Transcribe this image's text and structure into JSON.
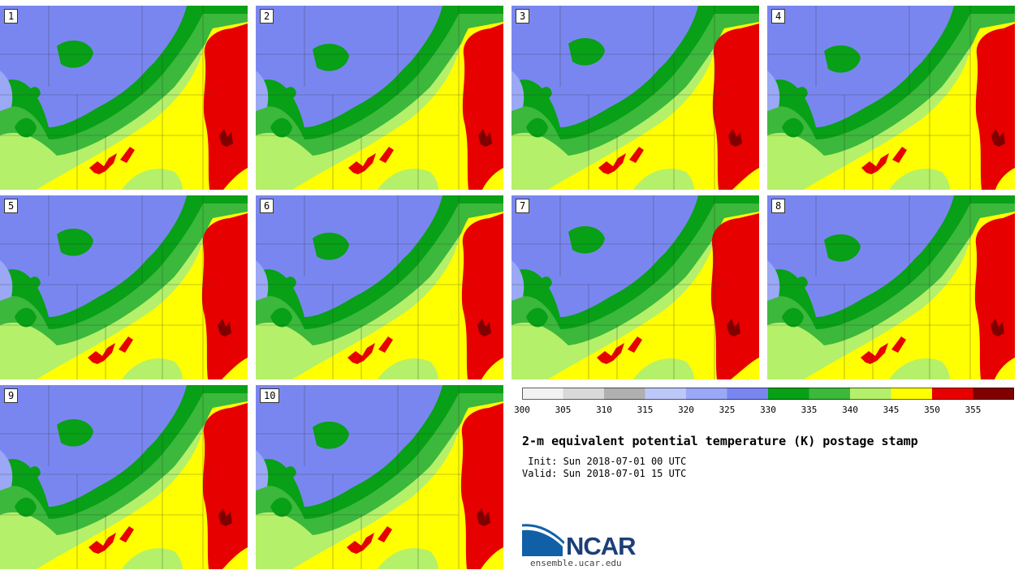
{
  "panels": [
    {
      "label": "1",
      "shift": 0
    },
    {
      "label": "2",
      "shift": 4
    },
    {
      "label": "3",
      "shift": -3
    },
    {
      "label": "4",
      "shift": 6
    },
    {
      "label": "5",
      "shift": -2
    },
    {
      "label": "6",
      "shift": 3
    },
    {
      "label": "7",
      "shift": -5
    },
    {
      "label": "8",
      "shift": 5
    },
    {
      "label": "9",
      "shift": -1
    },
    {
      "label": "10",
      "shift": 2
    }
  ],
  "colorbar": {
    "levels": [
      "300",
      "305",
      "310",
      "315",
      "320",
      "325",
      "330",
      "335",
      "340",
      "345",
      "350",
      "355"
    ],
    "colors": [
      "#f2f2f2",
      "#d9d9d9",
      "#b0b0b0",
      "#bcc8f8",
      "#9aa8f5",
      "#7a86f0",
      "#07a016",
      "#3cb83c",
      "#b4f06a",
      "#ffff00",
      "#e60000",
      "#800000"
    ]
  },
  "title": "2-m equivalent potential temperature (K) postage stamp",
  "init": " Init: Sun 2018-07-01 00 UTC",
  "valid": "Valid: Sun 2018-07-01 15 UTC",
  "logo": {
    "name": "NCAR",
    "url": "ensemble.ucar.edu"
  }
}
